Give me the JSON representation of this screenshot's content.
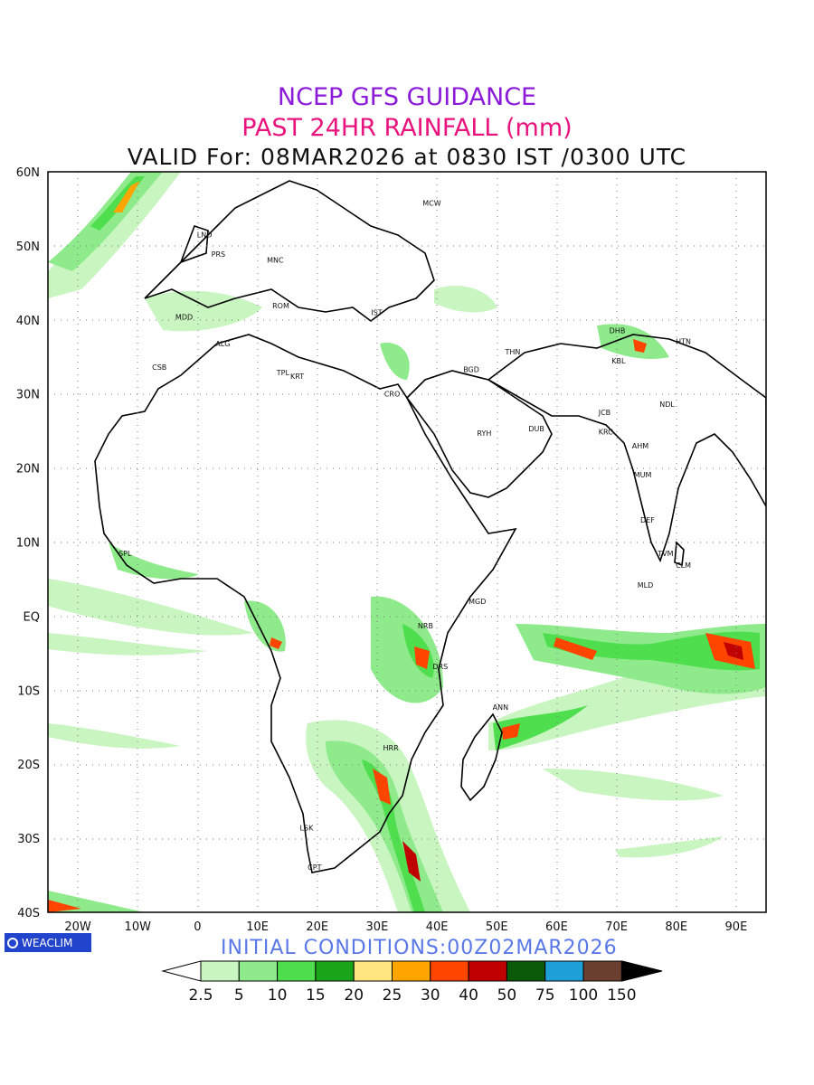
{
  "titles": {
    "line1": "NCEP GFS GUIDANCE",
    "line2": "PAST 24HR RAINFALL (mm)",
    "line3": "VALID For: 08MAR2026 at 0830 IST /0300 UTC"
  },
  "initial_conditions": "INITIAL CONDITIONS:00Z02MAR2026",
  "badge": "WEACLIM",
  "axes": {
    "lat_labels": [
      "60N",
      "50N",
      "40N",
      "30N",
      "20N",
      "10N",
      "EQ",
      "10S",
      "20S",
      "30S",
      "40S"
    ],
    "lon_labels": [
      "20W",
      "10W",
      "0",
      "10E",
      "20E",
      "30E",
      "40E",
      "50E",
      "60E",
      "70E",
      "80E",
      "90E"
    ],
    "lat_range": [
      -40,
      60
    ],
    "lon_range": [
      -25,
      95
    ]
  },
  "colorbar": {
    "labels": [
      "2.5",
      "5",
      "10",
      "15",
      "20",
      "25",
      "30",
      "40",
      "50",
      "75",
      "100",
      "150"
    ],
    "colors": [
      "#c8f5c0",
      "#8eea8a",
      "#4ede4e",
      "#1aa51a",
      "#ffe680",
      "#ffa500",
      "#ff4500",
      "#c00000",
      "#0a5a0a",
      "#1e9fd8",
      "#6b4030"
    ]
  },
  "cities": [
    {
      "name": "MCW",
      "lon": 37.6,
      "lat": 55.8
    },
    {
      "name": "LND",
      "lon": -0.1,
      "lat": 51.5
    },
    {
      "name": "PRS",
      "lon": 2.3,
      "lat": 48.9
    },
    {
      "name": "MNC",
      "lon": 11.6,
      "lat": 48.1
    },
    {
      "name": "MDD",
      "lon": -3.7,
      "lat": 40.4
    },
    {
      "name": "ROM",
      "lon": 12.5,
      "lat": 41.9
    },
    {
      "name": "IST",
      "lon": 29.0,
      "lat": 41.0
    },
    {
      "name": "ALG",
      "lon": 3.0,
      "lat": 36.8
    },
    {
      "name": "CSB",
      "lon": -7.6,
      "lat": 33.6
    },
    {
      "name": "TPL",
      "lon": 13.2,
      "lat": 32.9
    },
    {
      "name": "KRT",
      "lon": 15.5,
      "lat": 32.4
    },
    {
      "name": "CRO",
      "lon": 31.2,
      "lat": 30.0
    },
    {
      "name": "BGD",
      "lon": 44.4,
      "lat": 33.3
    },
    {
      "name": "THN",
      "lon": 51.4,
      "lat": 35.7
    },
    {
      "name": "RYH",
      "lon": 46.7,
      "lat": 24.7
    },
    {
      "name": "DUB",
      "lon": 55.3,
      "lat": 25.3
    },
    {
      "name": "DHB",
      "lon": 68.8,
      "lat": 38.6
    },
    {
      "name": "KBL",
      "lon": 69.2,
      "lat": 34.5
    },
    {
      "name": "HTN",
      "lon": 79.9,
      "lat": 37.1
    },
    {
      "name": "NDL",
      "lon": 77.2,
      "lat": 28.6
    },
    {
      "name": "JCB",
      "lon": 67.0,
      "lat": 27.5
    },
    {
      "name": "KRC",
      "lon": 67.0,
      "lat": 24.9
    },
    {
      "name": "AHM",
      "lon": 72.6,
      "lat": 23.0
    },
    {
      "name": "MUM",
      "lon": 72.9,
      "lat": 19.1
    },
    {
      "name": "DEF",
      "lon": 74.0,
      "lat": 13.0
    },
    {
      "name": "TVM",
      "lon": 76.9,
      "lat": 8.5
    },
    {
      "name": "CLM",
      "lon": 79.9,
      "lat": 6.9
    },
    {
      "name": "MLD",
      "lon": 73.5,
      "lat": 4.2
    },
    {
      "name": "SPL",
      "lon": -13.2,
      "lat": 8.5
    },
    {
      "name": "MGD",
      "lon": 45.3,
      "lat": 2.0
    },
    {
      "name": "NRB",
      "lon": 36.8,
      "lat": -1.3
    },
    {
      "name": "DRS",
      "lon": 39.3,
      "lat": -6.8
    },
    {
      "name": "ANN",
      "lon": 49.3,
      "lat": -12.3
    },
    {
      "name": "HRR",
      "lon": 31.0,
      "lat": -17.8
    },
    {
      "name": "LSK",
      "lon": 17.1,
      "lat": -28.6
    },
    {
      "name": "CPT",
      "lon": 18.4,
      "lat": -33.9
    }
  ]
}
